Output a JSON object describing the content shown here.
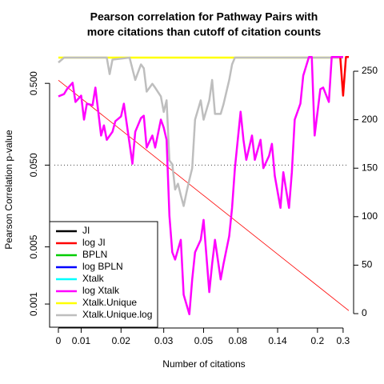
{
  "chart_data": {
    "type": "line",
    "title": [
      "Pearson correlation for Pathway Pairs with",
      "more citations than cutoff of citation counts"
    ],
    "xlabel": "Number of citations",
    "ylabel": "Pearson Correlation p-value",
    "ylog": true,
    "xlim": [
      -1.4,
      102
    ],
    "ylim": [
      0.00057,
      1.08
    ],
    "y2lim": [
      -10.7,
      265.7
    ],
    "xticks": [
      {
        "value": 0,
        "label": "0"
      },
      {
        "value": 8,
        "label": "0.01"
      },
      {
        "value": 22,
        "label": "0.02"
      },
      {
        "value": 37,
        "label": "0.03"
      },
      {
        "value": 51,
        "label": "0.05"
      },
      {
        "value": 63,
        "label": "0.08"
      },
      {
        "value": 77,
        "label": "0.14"
      },
      {
        "value": 91,
        "label": "0.2"
      },
      {
        "value": 100,
        "label": "0.3"
      }
    ],
    "yticks": [
      0.001,
      0.005,
      {
        "value": 0.05,
        "label": "0.050"
      },
      {
        "value": 0.5,
        "label": "0.500"
      }
    ],
    "y2ticks": [
      0,
      50,
      100,
      150,
      200,
      250
    ],
    "hline": 0.05,
    "trend_line": {
      "x": [
        0,
        102
      ],
      "values": [
        0.546,
        0.00083
      ],
      "color": "#ff0000"
    },
    "legend": "bottomleft",
    "series": [
      {
        "name": "JI",
        "color": "#000000",
        "x": [],
        "values": []
      },
      {
        "name": "log JI",
        "color": "#ff0000",
        "x": [
          97,
          99,
          100,
          101,
          102
        ],
        "values": [
          1.05,
          1.05,
          0.354,
          1.05,
          1.05
        ]
      },
      {
        "name": "BPLN",
        "color": "#00cd00",
        "x": [],
        "values": []
      },
      {
        "name": "log BPLN",
        "color": "#0000ff",
        "x": [],
        "values": []
      },
      {
        "name": "Xtalk",
        "color": "#00ffff",
        "x": [],
        "values": []
      },
      {
        "name": "log Xtalk",
        "color": "#ff00ff",
        "x": [
          0,
          2,
          3,
          5,
          6,
          8,
          9,
          10,
          12,
          13,
          15,
          16,
          17,
          19,
          20,
          22,
          23,
          24,
          26,
          27,
          29,
          30,
          31,
          33,
          34,
          36,
          37,
          38,
          39,
          40,
          41,
          43,
          44,
          46,
          47,
          48,
          50,
          51,
          53,
          54,
          55,
          57,
          58,
          60,
          61,
          62,
          64,
          65,
          66,
          68,
          69,
          71,
          72,
          74,
          75,
          76,
          78,
          79,
          81,
          82,
          83,
          85,
          86,
          88,
          89,
          90,
          92,
          93,
          95,
          96,
          97,
          100
        ],
        "values": [
          0.346,
          0.37,
          0.424,
          0.508,
          0.296,
          0.354,
          0.18,
          0.282,
          0.27,
          0.444,
          0.115,
          0.153,
          0.102,
          0.128,
          0.172,
          0.197,
          0.282,
          0.161,
          0.052,
          0.128,
          0.188,
          0.201,
          0.082,
          0.115,
          0.082,
          0.18,
          0.144,
          0.102,
          0.012,
          0.0043,
          0.0035,
          0.0061,
          0.0013,
          0.00075,
          0.002,
          0.0043,
          0.0061,
          0.0107,
          0.0014,
          0.0031,
          0.0061,
          0.002,
          0.0031,
          0.0068,
          0.015,
          0.046,
          0.225,
          0.102,
          0.058,
          0.115,
          0.058,
          0.102,
          0.046,
          0.065,
          0.091,
          0.037,
          0.015,
          0.041,
          0.015,
          0.041,
          0.18,
          0.282,
          0.622,
          1.05,
          1.05,
          0.115,
          0.424,
          0.444,
          0.296,
          1.05,
          1.05,
          1.05
        ]
      },
      {
        "name": "Xtalk.Unique",
        "color": "#ffff00",
        "axis": "y2",
        "x": [
          0,
          100
        ],
        "values": [
          264,
          264
        ]
      },
      {
        "name": "Xtalk.Unique.log",
        "color": "#bebebe",
        "axis": "y2",
        "x": [
          0,
          2,
          17,
          18,
          19,
          25,
          27,
          29,
          30,
          31,
          33,
          34,
          36,
          37,
          38,
          39,
          40,
          41,
          42,
          43,
          44,
          45,
          46,
          47,
          48,
          50,
          51,
          53,
          54,
          55,
          57,
          58,
          60,
          61,
          62,
          100
        ],
        "values": [
          259,
          264,
          264,
          247,
          262,
          264,
          241,
          257,
          253,
          229,
          237,
          233,
          224,
          208,
          220,
          158,
          154,
          128,
          134,
          122,
          111,
          125,
          138,
          150,
          200,
          220,
          200,
          220,
          241,
          206,
          206,
          216,
          241,
          257,
          264,
          264
        ]
      }
    ]
  }
}
